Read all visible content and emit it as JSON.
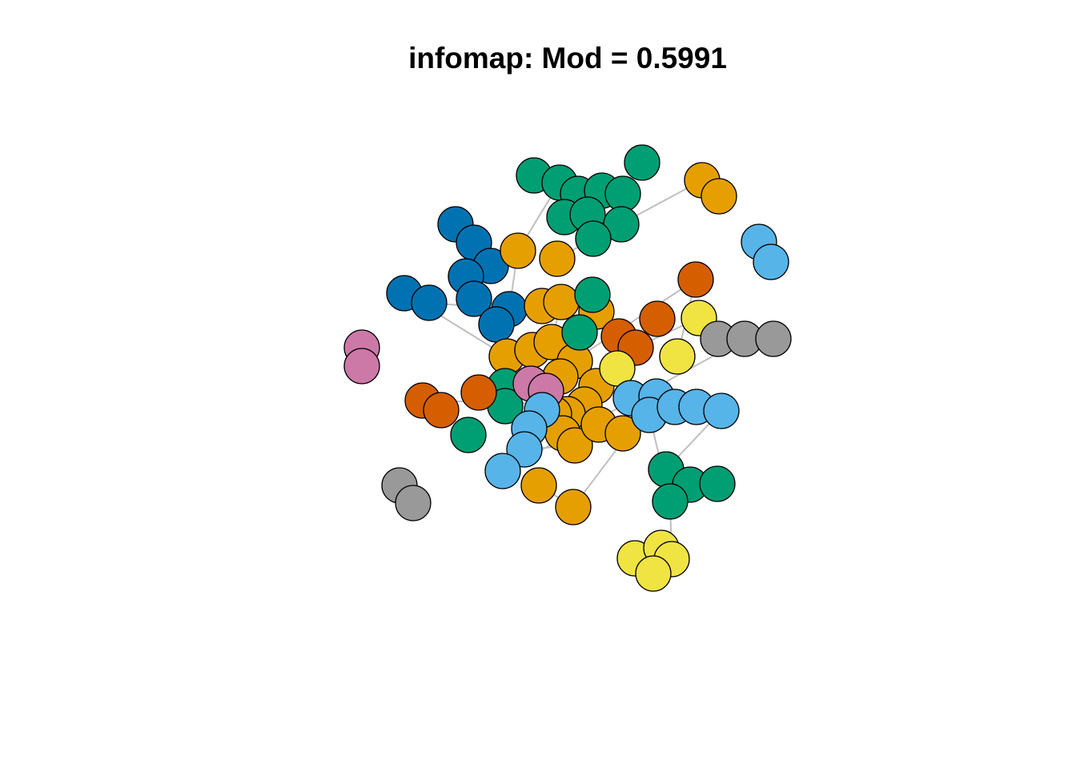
{
  "title": "infomap: Mod = 0.5991",
  "graph": {
    "layout": "force-directed network",
    "community_colors": {
      "green": "#009E73",
      "orange": "#E69F00",
      "blue": "#0072B2",
      "skyblue": "#56B4E9",
      "vermillion": "#D55E00",
      "yellow": "#F0E442",
      "pink": "#CC79A7",
      "grey": "#999999"
    },
    "node_outline": "#000000",
    "edge_color": "#BFBFBF"
  }
}
